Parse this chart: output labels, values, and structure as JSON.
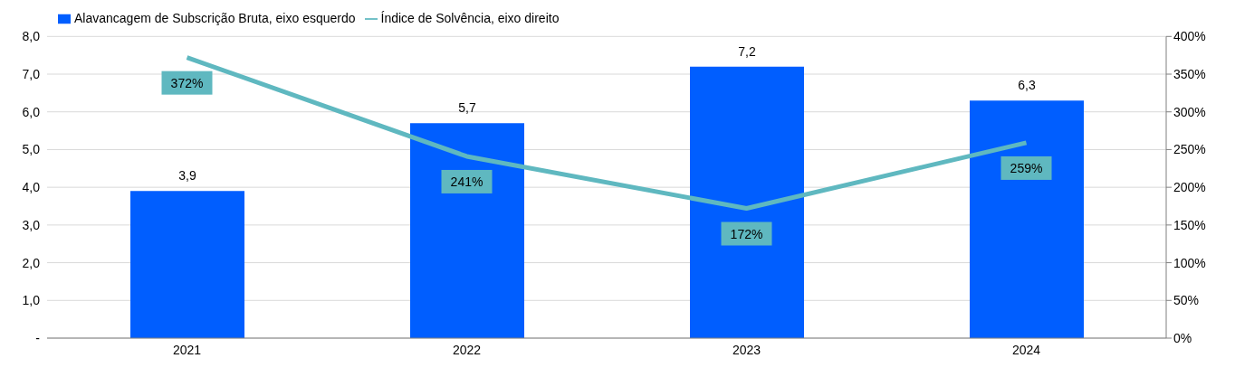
{
  "chart_data": {
    "type": "bar",
    "categories": [
      "2021",
      "2022",
      "2023",
      "2024"
    ],
    "series": [
      {
        "name": "Alavancagem de Subscrição Bruta, eixo esquerdo",
        "color": "#005eff",
        "values": [
          3.9,
          5.7,
          7.2,
          6.3
        ],
        "value_labels": [
          "3,9",
          "5,7",
          "7,2",
          "6,3"
        ]
      },
      {
        "name": "Índice de Solvência, eixo direito",
        "type": "line",
        "axis": "y2",
        "color": "#5fb8c0",
        "values": [
          372,
          241,
          172,
          259
        ],
        "value_labels": [
          "372%",
          "241%",
          "172%",
          "259%"
        ]
      }
    ],
    "ylim": [
      0,
      8
    ],
    "yticks": [
      {
        "value": 0,
        "label": "-"
      },
      {
        "value": 1,
        "label": "1,0"
      },
      {
        "value": 2,
        "label": "2,0"
      },
      {
        "value": 3,
        "label": "3,0"
      },
      {
        "value": 4,
        "label": "4,0"
      },
      {
        "value": 5,
        "label": "5,0"
      },
      {
        "value": 6,
        "label": "6,0"
      },
      {
        "value": 7,
        "label": "7,0"
      },
      {
        "value": 8,
        "label": "8,0"
      }
    ],
    "y2lim": [
      0,
      400
    ],
    "y2ticks": [
      {
        "value": 0,
        "label": "0%"
      },
      {
        "value": 50,
        "label": "50%"
      },
      {
        "value": 100,
        "label": "100%"
      },
      {
        "value": 150,
        "label": "150%"
      },
      {
        "value": 200,
        "label": "200%"
      },
      {
        "value": 250,
        "label": "250%"
      },
      {
        "value": 300,
        "label": "300%"
      },
      {
        "value": 350,
        "label": "350%"
      },
      {
        "value": 400,
        "label": "400%"
      }
    ],
    "grid": "y",
    "legend": "top left",
    "marker": "none",
    "line_style": "solid"
  }
}
